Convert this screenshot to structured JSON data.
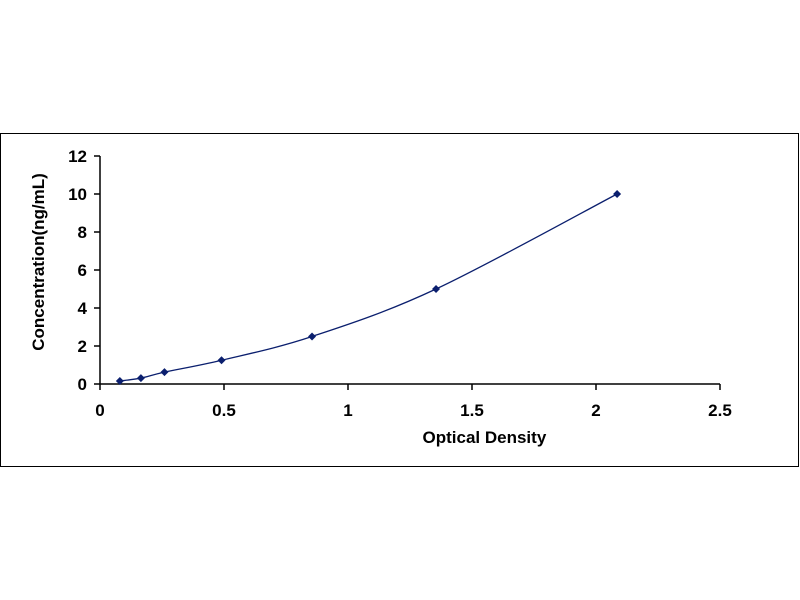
{
  "chart_data": {
    "type": "scatter",
    "title": "",
    "xlabel": "Optical Density",
    "ylabel": "Concentration(ng/mL)",
    "xlim": [
      0,
      2.5
    ],
    "ylim": [
      0,
      12
    ],
    "x_ticks": [
      "0",
      "0.5",
      "1",
      "1.5",
      "2",
      "2.5"
    ],
    "y_ticks": [
      "0",
      "2",
      "4",
      "6",
      "8",
      "10",
      "12"
    ],
    "grid": false,
    "legend": "none",
    "series": [
      {
        "marker": "diamond",
        "trendline": "smooth curve",
        "color": "#0b1f6e",
        "x": [
          0.08,
          0.165,
          0.26,
          0.49,
          0.855,
          1.355,
          2.085
        ],
        "y": [
          0.156,
          0.312,
          0.625,
          1.25,
          2.5,
          5,
          10
        ]
      }
    ]
  }
}
